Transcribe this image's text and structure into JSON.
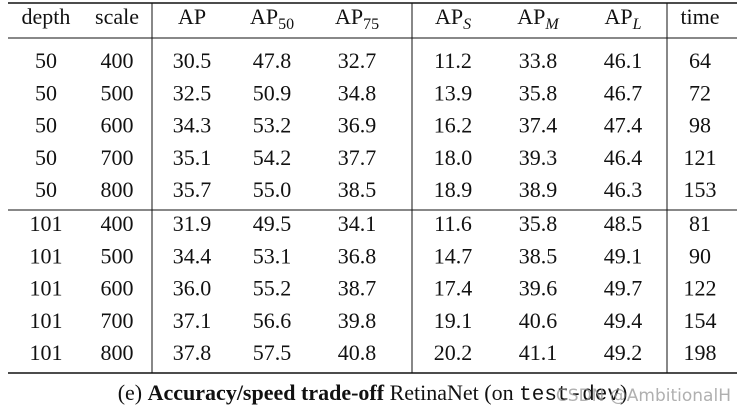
{
  "table": {
    "header": [
      "depth",
      "scale",
      "AP",
      {
        "base": "AP",
        "sub": "50"
      },
      {
        "base": "AP",
        "sub": "75"
      },
      {
        "base": "AP",
        "sub": "S"
      },
      {
        "base": "AP",
        "sub": "M"
      },
      {
        "base": "AP",
        "sub": "L"
      },
      "time"
    ],
    "groups": [
      [
        [
          "50",
          "400",
          "30.5",
          "47.8",
          "32.7",
          "11.2",
          "33.8",
          "46.1",
          "64"
        ],
        [
          "50",
          "500",
          "32.5",
          "50.9",
          "34.8",
          "13.9",
          "35.8",
          "46.7",
          "72"
        ],
        [
          "50",
          "600",
          "34.3",
          "53.2",
          "36.9",
          "16.2",
          "37.4",
          "47.4",
          "98"
        ],
        [
          "50",
          "700",
          "35.1",
          "54.2",
          "37.7",
          "18.0",
          "39.3",
          "46.4",
          "121"
        ],
        [
          "50",
          "800",
          "35.7",
          "55.0",
          "38.5",
          "18.9",
          "38.9",
          "46.3",
          "153"
        ]
      ],
      [
        [
          "101",
          "400",
          "31.9",
          "49.5",
          "34.1",
          "11.6",
          "35.8",
          "48.5",
          "81"
        ],
        [
          "101",
          "500",
          "34.4",
          "53.1",
          "36.8",
          "14.7",
          "38.5",
          "49.1",
          "90"
        ],
        [
          "101",
          "600",
          "36.0",
          "55.2",
          "38.7",
          "17.4",
          "39.6",
          "49.7",
          "122"
        ],
        [
          "101",
          "700",
          "37.1",
          "56.6",
          "39.8",
          "19.1",
          "40.6",
          "49.4",
          "154"
        ],
        [
          "101",
          "800",
          "37.8",
          "57.5",
          "40.8",
          "20.2",
          "41.1",
          "49.2",
          "198"
        ]
      ]
    ]
  },
  "caption": {
    "label": "(e)",
    "bold": "Accuracy/speed trade-off",
    "text": "RetinaNet (on",
    "code": "test-dev",
    "close": ")"
  },
  "watermark": "CSDN @AmbitionalH"
}
